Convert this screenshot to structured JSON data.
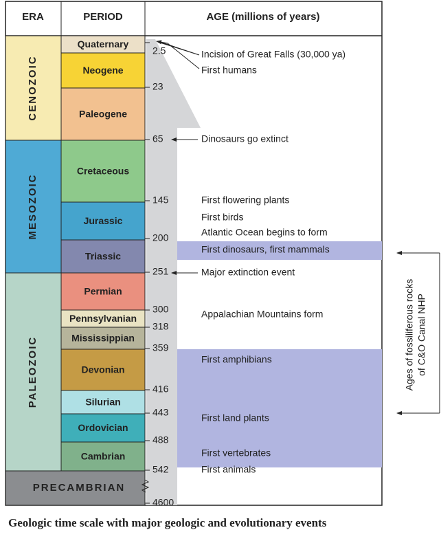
{
  "header": {
    "era": "ERA",
    "period": "PERIOD",
    "age": "AGE (millions of years)"
  },
  "eras": [
    "CENOZOIC",
    "MESOZOIC",
    "PALEOZOIC",
    "PRECAMBRIAN"
  ],
  "periods": [
    "Quaternary",
    "Neogene",
    "Paleogene",
    "Cretaceous",
    "Jurassic",
    "Triassic",
    "Permian",
    "Pennsylvanian",
    "Mississippian",
    "Devonian",
    "Silurian",
    "Ordovician",
    "Cambrian"
  ],
  "ages": [
    "2.5",
    "23",
    "65",
    "145",
    "200",
    "251",
    "300",
    "318",
    "359",
    "416",
    "443",
    "488",
    "542",
    "4600"
  ],
  "events": [
    "Incision of Great Falls (30,000 ya)",
    "First humans",
    "Dinosaurs go extinct",
    "First flowering plants",
    "First birds",
    "Atlantic Ocean begins to form",
    "First dinosaurs, first mammals",
    "Major extinction event",
    "Appalachian Mountains form",
    "First amphibians",
    "First land plants",
    "First vertebrates",
    "First animals"
  ],
  "side_note": [
    "Ages of fossiliferous rocks",
    "of C&O Canal NHP"
  ],
  "caption": "Geologic time scale with major geologic and evolutionary events"
}
